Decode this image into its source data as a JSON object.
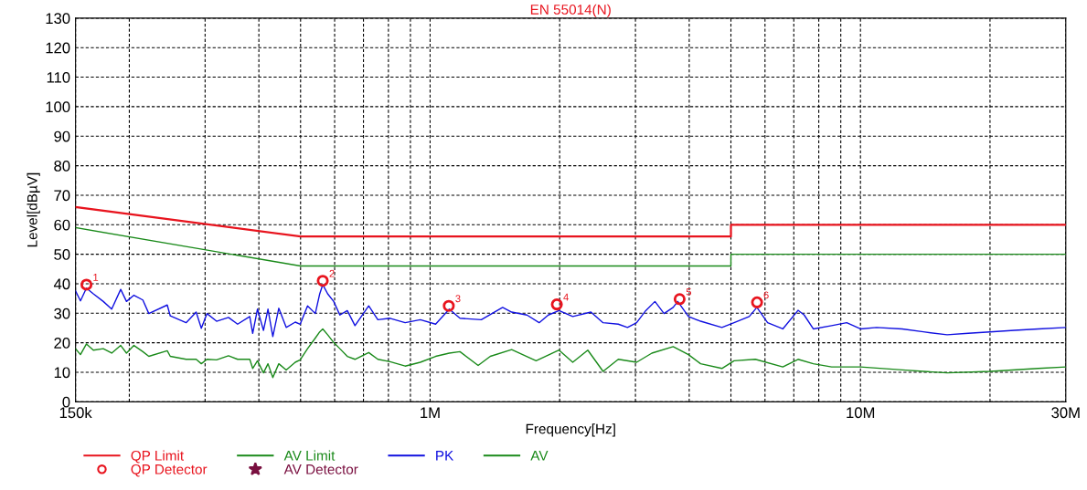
{
  "chart_data": {
    "type": "line",
    "title": "EN 55014(N)",
    "xlabel": "Frequency[Hz]",
    "ylabel": "Level[dBµV]",
    "log": "x",
    "grid": true,
    "legend": "bottom",
    "line_style": "solid",
    "xlim": [
      150000,
      30000000
    ],
    "ylim": [
      0,
      130
    ],
    "xticks": [
      {
        "value": 150000,
        "label": "150k"
      },
      {
        "value": 200000,
        "label": null
      },
      {
        "value": 300000,
        "label": null
      },
      {
        "value": 400000,
        "label": null
      },
      {
        "value": 500000,
        "label": null
      },
      {
        "value": 600000,
        "label": null
      },
      {
        "value": 700000,
        "label": null
      },
      {
        "value": 800000,
        "label": null
      },
      {
        "value": 900000,
        "label": null
      },
      {
        "value": 1000000,
        "label": "1M"
      },
      {
        "value": 2000000,
        "label": null
      },
      {
        "value": 3000000,
        "label": null
      },
      {
        "value": 4000000,
        "label": null
      },
      {
        "value": 5000000,
        "label": null
      },
      {
        "value": 6000000,
        "label": null
      },
      {
        "value": 7000000,
        "label": null
      },
      {
        "value": 8000000,
        "label": null
      },
      {
        "value": 9000000,
        "label": null
      },
      {
        "value": 10000000,
        "label": "10M"
      },
      {
        "value": 20000000,
        "label": null
      },
      {
        "value": 30000000,
        "label": "30M"
      }
    ],
    "yticks": [
      0,
      10,
      20,
      30,
      40,
      50,
      60,
      70,
      80,
      90,
      100,
      110,
      120,
      130
    ],
    "series": [
      {
        "name": "QP Limit",
        "color": "#e8141e",
        "x": [
          150000,
          500000,
          5000000,
          5000000,
          30000000
        ],
        "values": [
          66,
          56,
          56,
          60,
          60
        ]
      },
      {
        "name": "AV Limit",
        "color": "#1a8a1a",
        "x": [
          150000,
          500000,
          5000000,
          5000000,
          30000000
        ],
        "values": [
          59,
          46,
          46,
          50,
          50
        ]
      },
      {
        "name": "PK",
        "color": "#1010e0",
        "x": [
          150000,
          154000,
          159000,
          165000,
          174000,
          182000,
          191000,
          197000,
          205000,
          215000,
          222000,
          245000,
          249000,
          271000,
          286000,
          294000,
          303000,
          319000,
          340000,
          357000,
          381000,
          387000,
          397000,
          410000,
          420000,
          431000,
          445000,
          463000,
          486000,
          499000,
          519000,
          541000,
          554000,
          563000,
          578000,
          597000,
          617000,
          642000,
          669000,
          720000,
          756000,
          807000,
          875000,
          949000,
          1030000,
          1108000,
          1173000,
          1315000,
          1474000,
          1547000,
          1679000,
          1792000,
          1882000,
          1993000,
          2145000,
          2364000,
          2523000,
          2737000,
          2875000,
          3019000,
          3170000,
          3330000,
          3496000,
          3671000,
          3762000,
          3984000,
          4251000,
          4764000,
          5085000,
          5515000,
          5745000,
          6084000,
          6600000,
          7160000,
          7400000,
          7770000,
          8570000,
          9290000,
          10000000,
          10900000,
          12500000,
          14000000,
          15900000,
          17800000,
          20000000,
          22800000,
          25900000,
          30000000
        ],
        "values": [
          37.6,
          34.2,
          38.5,
          36.6,
          34.0,
          31.4,
          38.1,
          34.0,
          36.1,
          34.5,
          29.9,
          32.8,
          29.1,
          26.8,
          30.4,
          24.9,
          29.9,
          27.3,
          28.6,
          26.3,
          28.9,
          23.2,
          31.4,
          24.2,
          31.4,
          22.1,
          31.7,
          25.2,
          27.0,
          26.3,
          32.5,
          29.9,
          36.6,
          39.7,
          36.6,
          34.0,
          29.4,
          30.9,
          25.8,
          32.5,
          27.8,
          28.3,
          26.8,
          27.8,
          26.3,
          31.4,
          28.3,
          27.8,
          32.0,
          30.4,
          29.4,
          26.8,
          29.4,
          30.9,
          28.9,
          30.4,
          26.8,
          26.3,
          25.2,
          26.8,
          30.9,
          34.0,
          29.9,
          32.0,
          34.0,
          28.9,
          27.3,
          25.2,
          26.8,
          28.9,
          32.0,
          26.8,
          24.7,
          31.0,
          29.4,
          24.7,
          25.8,
          26.8,
          24.7,
          25.2,
          24.7,
          23.7,
          22.7,
          23.2,
          23.7,
          24.2,
          24.7,
          25.2
        ]
      },
      {
        "name": "AV",
        "color": "#1a8a1a",
        "x": [
          150000,
          154000,
          159000,
          165000,
          174000,
          182000,
          191000,
          197000,
          205000,
          215000,
          222000,
          245000,
          249000,
          271000,
          286000,
          294000,
          303000,
          319000,
          340000,
          357000,
          381000,
          387000,
          397000,
          410000,
          420000,
          431000,
          445000,
          463000,
          486000,
          499000,
          519000,
          541000,
          554000,
          563000,
          578000,
          597000,
          617000,
          642000,
          669000,
          720000,
          756000,
          807000,
          875000,
          949000,
          1030000,
          1108000,
          1173000,
          1293000,
          1380000,
          1547000,
          1763000,
          1993000,
          2145000,
          2325000,
          2523000,
          2737000,
          3019000,
          3276000,
          3671000,
          3984000,
          4251000,
          4764000,
          5085000,
          5698000,
          6600000,
          7160000,
          7770000,
          8570000,
          10000000,
          12500000,
          15900000,
          20000000,
          25900000,
          30000000
        ],
        "values": [
          18.0,
          16.0,
          19.6,
          17.5,
          18.0,
          16.5,
          19.1,
          16.5,
          19.1,
          17.0,
          15.4,
          17.3,
          15.4,
          14.4,
          14.4,
          12.9,
          14.4,
          14.2,
          15.6,
          14.4,
          14.4,
          11.3,
          13.9,
          9.8,
          12.9,
          8.2,
          12.9,
          10.8,
          13.4,
          14.2,
          18.0,
          21.6,
          23.7,
          24.7,
          22.7,
          20.1,
          18.0,
          15.4,
          14.4,
          16.7,
          14.4,
          13.6,
          12.1,
          13.4,
          15.4,
          16.5,
          17.0,
          12.3,
          15.4,
          17.7,
          13.9,
          17.5,
          13.4,
          17.5,
          10.3,
          14.4,
          13.4,
          16.5,
          18.7,
          16.0,
          12.9,
          11.3,
          13.9,
          14.4,
          11.8,
          14.4,
          12.9,
          11.8,
          11.8,
          10.8,
          9.8,
          10.3,
          11.3,
          11.8
        ]
      },
      {
        "name": "QP Detector",
        "type": "scatter",
        "marker": "circle",
        "color": "#e8141e",
        "x": [
          159000,
          563000,
          1105000,
          1970000,
          3800000,
          5750000
        ],
        "values": [
          39.7,
          41.0,
          32.5,
          33.0,
          34.8,
          33.7
        ]
      },
      {
        "name": "AV Detector",
        "type": "scatter",
        "marker": "star",
        "color": "#7a1040"
      }
    ],
    "annotations": [
      {
        "text": "1",
        "x": 159000,
        "y": 39.7
      },
      {
        "text": "2",
        "x": 563000,
        "y": 41.0
      },
      {
        "text": "3",
        "x": 1105000,
        "y": 32.5
      },
      {
        "text": "4",
        "x": 1970000,
        "y": 33.0
      },
      {
        "text": "5",
        "x": 3800000,
        "y": 34.8
      },
      {
        "text": "6",
        "x": 5750000,
        "y": 33.7
      }
    ]
  }
}
